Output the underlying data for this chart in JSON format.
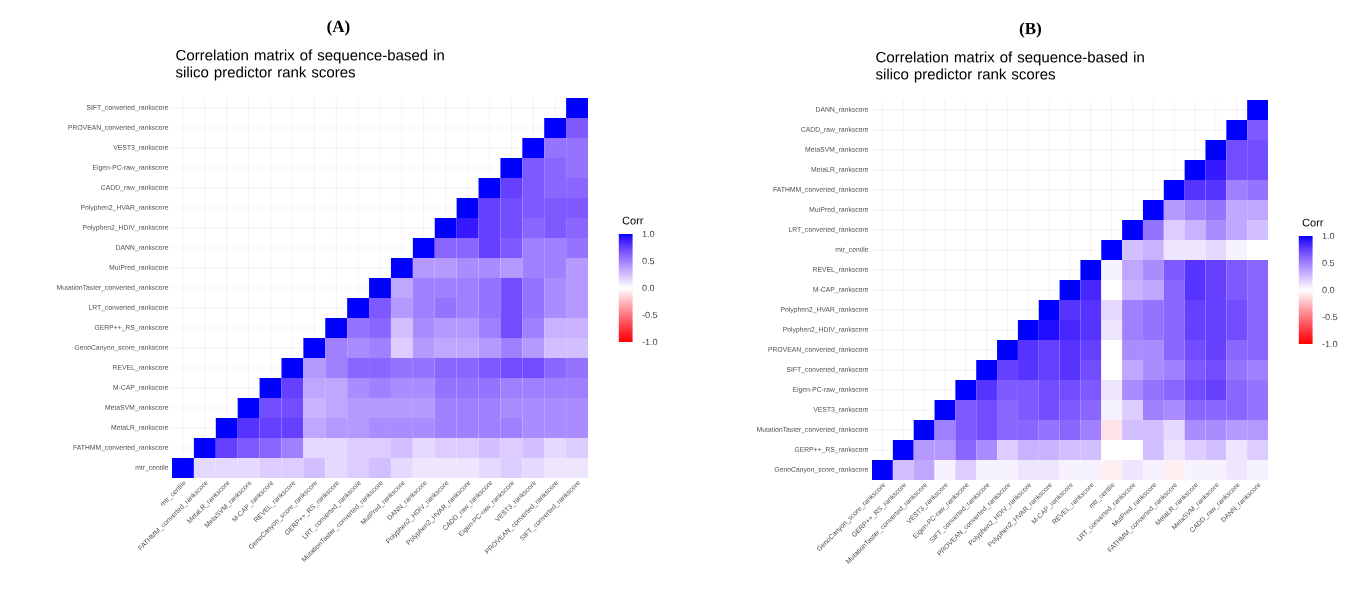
{
  "chart_data": [
    {
      "type": "heatmap",
      "annotations": [
        "(A)"
      ],
      "title": "Correlation matrix of sequence-based in silico predictor rank scores",
      "clabel": "Corr",
      "clim": [
        -1,
        1
      ],
      "cticks": [
        {
          "value": -1,
          "label": "-1.0"
        },
        {
          "value": -0.5,
          "label": "-0.5"
        },
        {
          "value": 0,
          "label": "0.0"
        },
        {
          "value": 0.5,
          "label": "0.5"
        },
        {
          "value": 1,
          "label": "1.0"
        }
      ],
      "grid": true,
      "categories": [
        "mtr_centile",
        "FATHMM_converted_rankscore",
        "MetaLR_rankscore",
        "MetaSVM_rankscore",
        "M-CAP_rankscore",
        "REVEL_rankscore",
        "GenoCanyon_score_rankscore",
        "GERP++_RS_rankscore",
        "LRT_converted_rankscore",
        "MutationTaster_converted_rankscore",
        "MutPred_rankscore",
        "DANN_rankscore",
        "Polyphen2_HDIV_rankscore",
        "Polyphen2_HVAR_rankscore",
        "CADD_raw_rankscore",
        "Eigen-PC-raw_rankscore",
        "VEST3_rankscore",
        "PROVEAN_converted_rankscore",
        "SIFT_converted_rankscore"
      ],
      "y_categories": [
        "SIFT_converted_rankscore",
        "PROVEAN_converted_rankscore",
        "VEST3_rankscore",
        "Eigen-PC-raw_rankscore",
        "CADD_raw_rankscore",
        "Polyphen2_HVAR_rankscore",
        "Polyphen2_HDIV_rankscore",
        "DANN_rankscore",
        "MutPred_rankscore",
        "MutationTaster_converted_rankscore",
        "LRT_converted_rankscore",
        "GERP++_RS_rankscore",
        "GenoCanyon_score_rankscore",
        "REVEL_rankscore",
        "M-CAP_rankscore",
        "MetaSVM_rankscore",
        "MetaLR_rankscore",
        "FATHMM_converted_rankscore",
        "mtr_centile"
      ],
      "cells": [
        [
          null,
          null,
          null,
          null,
          null,
          null,
          null,
          null,
          null,
          null,
          null,
          null,
          null,
          null,
          null,
          null,
          null,
          null,
          1
        ],
        [
          null,
          null,
          null,
          null,
          null,
          null,
          null,
          null,
          null,
          null,
          null,
          null,
          null,
          null,
          null,
          null,
          null,
          1,
          0.65
        ],
        [
          null,
          null,
          null,
          null,
          null,
          null,
          null,
          null,
          null,
          null,
          null,
          null,
          null,
          null,
          null,
          null,
          1,
          0.55,
          0.55
        ],
        [
          null,
          null,
          null,
          null,
          null,
          null,
          null,
          null,
          null,
          null,
          null,
          null,
          null,
          null,
          null,
          1,
          0.65,
          0.6,
          0.55
        ],
        [
          null,
          null,
          null,
          null,
          null,
          null,
          null,
          null,
          null,
          null,
          null,
          null,
          null,
          null,
          1,
          0.75,
          0.65,
          0.6,
          0.6
        ],
        [
          null,
          null,
          null,
          null,
          null,
          null,
          null,
          null,
          null,
          null,
          null,
          null,
          null,
          1,
          0.75,
          0.7,
          0.65,
          0.65,
          0.65
        ],
        [
          null,
          null,
          null,
          null,
          null,
          null,
          null,
          null,
          null,
          null,
          null,
          null,
          1,
          0.9,
          0.75,
          0.7,
          0.6,
          0.65,
          0.6
        ],
        [
          null,
          null,
          null,
          null,
          null,
          null,
          null,
          null,
          null,
          null,
          null,
          1,
          0.6,
          0.6,
          0.75,
          0.65,
          0.5,
          0.5,
          0.55
        ],
        [
          null,
          null,
          null,
          null,
          null,
          null,
          null,
          null,
          null,
          null,
          1,
          0.4,
          0.4,
          0.45,
          0.45,
          0.4,
          0.5,
          0.5,
          0.4
        ],
        [
          null,
          null,
          null,
          null,
          null,
          null,
          null,
          null,
          null,
          1,
          0.35,
          0.5,
          0.5,
          0.5,
          0.55,
          0.7,
          0.55,
          0.45,
          0.4
        ],
        [
          null,
          null,
          null,
          null,
          null,
          null,
          null,
          null,
          1,
          0.65,
          0.4,
          0.5,
          0.55,
          0.5,
          0.55,
          0.7,
          0.55,
          0.45,
          0.4
        ],
        [
          null,
          null,
          null,
          null,
          null,
          null,
          null,
          1,
          0.55,
          0.6,
          0.25,
          0.45,
          0.4,
          0.4,
          0.5,
          0.7,
          0.5,
          0.3,
          0.3
        ],
        [
          null,
          null,
          null,
          null,
          null,
          null,
          1,
          0.5,
          0.45,
          0.5,
          0.2,
          0.4,
          0.35,
          0.35,
          0.4,
          0.5,
          0.4,
          0.25,
          0.25
        ],
        [
          null,
          null,
          null,
          null,
          null,
          1,
          0.4,
          0.5,
          0.6,
          0.6,
          0.55,
          0.55,
          0.6,
          0.6,
          0.65,
          0.7,
          0.7,
          0.6,
          0.55
        ],
        [
          null,
          null,
          null,
          null,
          1,
          0.75,
          0.35,
          0.35,
          0.45,
          0.5,
          0.45,
          0.45,
          0.55,
          0.55,
          0.55,
          0.5,
          0.5,
          0.5,
          0.5
        ],
        [
          null,
          null,
          null,
          1,
          0.7,
          0.7,
          0.3,
          0.35,
          0.4,
          0.4,
          0.4,
          0.4,
          0.5,
          0.5,
          0.5,
          0.45,
          0.45,
          0.45,
          0.45
        ],
        [
          null,
          null,
          1,
          0.8,
          0.75,
          0.75,
          0.35,
          0.4,
          0.4,
          0.45,
          0.45,
          0.45,
          0.5,
          0.5,
          0.5,
          0.5,
          0.45,
          0.45,
          0.45
        ],
        [
          null,
          1,
          0.75,
          0.65,
          0.6,
          0.5,
          0.15,
          0.15,
          0.2,
          0.2,
          0.25,
          0.15,
          0.2,
          0.2,
          0.25,
          0.2,
          0.25,
          0.15,
          0.2
        ],
        [
          1,
          0.15,
          0.15,
          0.15,
          0.2,
          0.2,
          0.25,
          0.15,
          0.2,
          0.25,
          0.15,
          0.1,
          0.1,
          0.1,
          0.15,
          0.2,
          0.15,
          0.1,
          0.1
        ]
      ]
    },
    {
      "type": "heatmap",
      "annotations": [
        "(B)"
      ],
      "title": "Correlation matrix of sequence-based in silico predictor rank scores",
      "clabel": "Corr",
      "clim": [
        -1,
        1
      ],
      "cticks": [
        {
          "value": -1,
          "label": "-1.0"
        },
        {
          "value": -0.5,
          "label": "-0.5"
        },
        {
          "value": 0,
          "label": "0.0"
        },
        {
          "value": 0.5,
          "label": "0.5"
        },
        {
          "value": 1,
          "label": "1.0"
        }
      ],
      "grid": true,
      "categories": [
        "GenoCanyon_score_rankscore",
        "GERP++_RS_rankscore",
        "MutationTaster_converted_rankscore",
        "VEST3_rankscore",
        "Eigen-PC-raw_rankscore",
        "SIFT_converted_rankscore",
        "PROVEAN_converted_rankscore",
        "Polyphen2_HDIV_rankscore",
        "Polyphen2_HVAR_rankscore",
        "M-CAP_rankscore",
        "REVEL_rankscore",
        "mtr_centile",
        "LRT_converted_rankscore",
        "MutPred_rankscore",
        "FATHMM_converted_rankscore",
        "MetaLR_rankscore",
        "MetaSVM_rankscore",
        "CADD_raw_rankscore",
        "DANN_rankscore"
      ],
      "y_categories": [
        "DANN_rankscore",
        "CADD_raw_rankscore",
        "MetaSVM_rankscore",
        "MetaLR_rankscore",
        "FATHMM_converted_rankscore",
        "MutPred_rankscore",
        "LRT_converted_rankscore",
        "mtr_centile",
        "REVEL_rankscore",
        "M-CAP_rankscore",
        "Polyphen2_HVAR_rankscore",
        "Polyphen2_HDIV_rankscore",
        "PROVEAN_converted_rankscore",
        "SIFT_converted_rankscore",
        "Eigen-PC-raw_rankscore",
        "VEST3_rankscore",
        "MutationTaster_converted_rankscore",
        "GERP++_RS_rankscore",
        "GenoCanyon_score_rankscore"
      ],
      "cells": [
        [
          null,
          null,
          null,
          null,
          null,
          null,
          null,
          null,
          null,
          null,
          null,
          null,
          null,
          null,
          null,
          null,
          null,
          null,
          1
        ],
        [
          null,
          null,
          null,
          null,
          null,
          null,
          null,
          null,
          null,
          null,
          null,
          null,
          null,
          null,
          null,
          null,
          null,
          1,
          0.65
        ],
        [
          null,
          null,
          null,
          null,
          null,
          null,
          null,
          null,
          null,
          null,
          null,
          null,
          null,
          null,
          null,
          null,
          1,
          0.7,
          0.7
        ],
        [
          null,
          null,
          null,
          null,
          null,
          null,
          null,
          null,
          null,
          null,
          null,
          null,
          null,
          null,
          null,
          1,
          0.9,
          0.7,
          0.7
        ],
        [
          null,
          null,
          null,
          null,
          null,
          null,
          null,
          null,
          null,
          null,
          null,
          null,
          null,
          null,
          1,
          0.8,
          0.8,
          0.5,
          0.55
        ],
        [
          null,
          null,
          null,
          null,
          null,
          null,
          null,
          null,
          null,
          null,
          null,
          null,
          null,
          1,
          0.4,
          0.5,
          0.55,
          0.35,
          0.35
        ],
        [
          null,
          null,
          null,
          null,
          null,
          null,
          null,
          null,
          null,
          null,
          null,
          null,
          1,
          0.55,
          0.2,
          0.3,
          0.45,
          0.35,
          0.25
        ],
        [
          null,
          null,
          null,
          null,
          null,
          null,
          null,
          null,
          null,
          null,
          null,
          1,
          0.25,
          0.3,
          0.1,
          0.1,
          0.15,
          0.05,
          0
        ],
        [
          null,
          null,
          null,
          null,
          null,
          null,
          null,
          null,
          null,
          null,
          1,
          0.05,
          0.35,
          0.45,
          0.65,
          0.8,
          0.75,
          0.65,
          0.6
        ],
        [
          null,
          null,
          null,
          null,
          null,
          null,
          null,
          null,
          null,
          1,
          0.85,
          0,
          0.3,
          0.35,
          0.6,
          0.8,
          0.75,
          0.65,
          0.6
        ],
        [
          null,
          null,
          null,
          null,
          null,
          null,
          null,
          null,
          1,
          0.8,
          0.8,
          0.15,
          0.5,
          0.55,
          0.6,
          0.75,
          0.75,
          0.7,
          0.6
        ],
        [
          null,
          null,
          null,
          null,
          null,
          null,
          null,
          1,
          0.95,
          0.85,
          0.8,
          0.1,
          0.5,
          0.55,
          0.6,
          0.75,
          0.75,
          0.7,
          0.6
        ],
        [
          null,
          null,
          null,
          null,
          null,
          null,
          1,
          0.8,
          0.75,
          0.8,
          0.75,
          0,
          0.45,
          0.45,
          0.6,
          0.7,
          0.75,
          0.6,
          0.6
        ],
        [
          null,
          null,
          null,
          null,
          null,
          1,
          0.75,
          0.8,
          0.75,
          0.8,
          0.7,
          0,
          0.35,
          0.45,
          0.5,
          0.65,
          0.7,
          0.55,
          0.5
        ],
        [
          null,
          null,
          null,
          null,
          1,
          0.8,
          0.65,
          0.65,
          0.7,
          0.7,
          0.65,
          0.1,
          0.45,
          0.55,
          0.6,
          0.7,
          0.75,
          0.6,
          0.55
        ],
        [
          null,
          null,
          null,
          1,
          0.65,
          0.7,
          0.6,
          0.65,
          0.7,
          0.65,
          0.6,
          0.05,
          0.2,
          0.5,
          0.45,
          0.6,
          0.6,
          0.6,
          0.55
        ],
        [
          null,
          null,
          1,
          0.5,
          0.65,
          0.7,
          0.6,
          0.6,
          0.55,
          0.6,
          0.5,
          -0.1,
          0.25,
          0.25,
          0.15,
          0.45,
          0.45,
          0.4,
          0.4
        ],
        [
          null,
          1,
          0.4,
          0.4,
          0.6,
          0.45,
          0.2,
          0.3,
          0.3,
          0.25,
          0.25,
          0,
          0,
          0.25,
          0.1,
          0.2,
          0.25,
          0.1,
          0.2
        ],
        [
          1,
          0.25,
          0.35,
          0.05,
          0.2,
          0.05,
          0.05,
          0.1,
          0.1,
          0.05,
          0.05,
          -0.05,
          0.1,
          0.05,
          -0.05,
          0.05,
          0.05,
          0.1,
          0.05
        ]
      ]
    }
  ]
}
